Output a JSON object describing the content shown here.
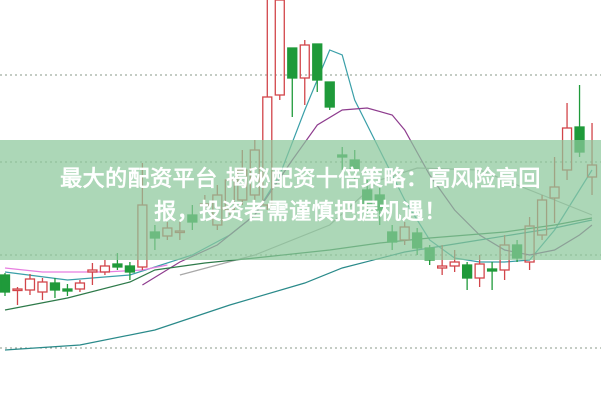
{
  "headline": {
    "line1": "最大的配资平台 揭秘配资十倍策略：高风险高回",
    "line2": "报，投资者需谨慎把握机遇！"
  },
  "chart_data": {
    "type": "candlestick",
    "title": "",
    "xlabel": "",
    "ylabel": "",
    "grid": "horizontal dotted",
    "colors": {
      "up": "#d2454a",
      "down": "#1f9a3a",
      "gridline": "#8a9a8a",
      "banner": "#8cc89b"
    },
    "candles": [
      {
        "o": 12.5,
        "h": 12.7,
        "l": 10.4,
        "c": 10.8
      },
      {
        "o": 11.0,
        "h": 11.3,
        "l": 9.5,
        "c": 11.1
      },
      {
        "o": 11.0,
        "h": 12.6,
        "l": 10.5,
        "c": 12.1
      },
      {
        "o": 10.8,
        "h": 12.2,
        "l": 10.0,
        "c": 11.8
      },
      {
        "o": 11.7,
        "h": 12.2,
        "l": 10.2,
        "c": 11.0
      },
      {
        "o": 11.1,
        "h": 11.6,
        "l": 10.4,
        "c": 10.9
      },
      {
        "o": 11.1,
        "h": 12.0,
        "l": 10.8,
        "c": 11.7
      },
      {
        "o": 12.8,
        "h": 13.7,
        "l": 11.5,
        "c": 13.0
      },
      {
        "o": 12.8,
        "h": 14.0,
        "l": 12.5,
        "c": 13.4
      },
      {
        "o": 13.6,
        "h": 14.7,
        "l": 13.0,
        "c": 13.3
      },
      {
        "o": 13.4,
        "h": 13.8,
        "l": 12.0,
        "c": 12.8
      },
      {
        "o": 13.3,
        "h": 23.7,
        "l": 13.0,
        "c": 19.5
      },
      {
        "o": 16.8,
        "h": 17.5,
        "l": 15.0,
        "c": 16.2
      },
      {
        "o": 16.4,
        "h": 17.8,
        "l": 16.0,
        "c": 17.2
      },
      {
        "o": 16.8,
        "h": 17.8,
        "l": 16.0,
        "c": 16.9
      },
      {
        "o": 18.5,
        "h": 19.5,
        "l": 17.0,
        "c": 17.8
      },
      {
        "o": 19.4,
        "h": 20.5,
        "l": 18.5,
        "c": 19.6
      },
      {
        "o": 17.5,
        "h": 21.5,
        "l": 17.0,
        "c": 20.5
      },
      {
        "o": 19.0,
        "h": 23.0,
        "l": 18.5,
        "c": 22.0
      },
      {
        "o": 20.0,
        "h": 25.0,
        "l": 19.5,
        "c": 23.0
      },
      {
        "o": 20.5,
        "h": 26.0,
        "l": 20.0,
        "c": 25.0
      },
      {
        "o": 19.5,
        "h": 40.0,
        "l": 19.0,
        "c": 30.3
      },
      {
        "o": 30.5,
        "h": 40.0,
        "l": 30.0,
        "c": 40.0
      },
      {
        "o": 35.2,
        "h": 35.2,
        "l": 28.3,
        "c": 32.2
      },
      {
        "o": 32.2,
        "h": 36.0,
        "l": 29.5,
        "c": 35.5
      },
      {
        "o": 35.6,
        "h": 35.6,
        "l": 30.8,
        "c": 32.0
      },
      {
        "o": 31.8,
        "h": 31.8,
        "l": 29.0,
        "c": 29.3
      },
      {
        "o": 24.5,
        "h": 25.3,
        "l": 23.0,
        "c": 24.3
      },
      {
        "o": 24.0,
        "h": 25.0,
        "l": 22.0,
        "c": 23.0
      },
      {
        "o": 21.0,
        "h": 22.0,
        "l": 18.5,
        "c": 19.5
      },
      {
        "o": 20.5,
        "h": 21.2,
        "l": 17.5,
        "c": 19.0
      },
      {
        "o": 16.8,
        "h": 17.5,
        "l": 15.0,
        "c": 15.8
      },
      {
        "o": 16.0,
        "h": 17.8,
        "l": 15.5,
        "c": 17.3
      },
      {
        "o": 16.7,
        "h": 17.2,
        "l": 14.5,
        "c": 15.2
      },
      {
        "o": 15.2,
        "h": 15.5,
        "l": 13.5,
        "c": 14.0
      },
      {
        "o": 13.2,
        "h": 15.5,
        "l": 12.5,
        "c": 13.4
      },
      {
        "o": 13.4,
        "h": 15.0,
        "l": 12.8,
        "c": 13.8
      },
      {
        "o": 13.5,
        "h": 13.8,
        "l": 11.0,
        "c": 12.2
      },
      {
        "o": 12.2,
        "h": 14.5,
        "l": 11.3,
        "c": 13.6
      },
      {
        "o": 13.1,
        "h": 13.8,
        "l": 11.0,
        "c": 12.9
      },
      {
        "o": 13.0,
        "h": 16.5,
        "l": 12.0,
        "c": 15.5
      },
      {
        "o": 15.5,
        "h": 16.0,
        "l": 13.8,
        "c": 14.2
      },
      {
        "o": 13.8,
        "h": 18.3,
        "l": 13.0,
        "c": 17.4
      },
      {
        "o": 16.5,
        "h": 20.5,
        "l": 16.0,
        "c": 20.0
      },
      {
        "o": 20.2,
        "h": 24.3,
        "l": 17.7,
        "c": 21.3
      },
      {
        "o": 23.0,
        "h": 29.7,
        "l": 22.0,
        "c": 27.2
      },
      {
        "o": 27.3,
        "h": 31.5,
        "l": 24.3,
        "c": 24.8
      },
      {
        "o": 22.3,
        "h": 27.7,
        "l": 20.5,
        "c": 23.5
      }
    ],
    "moving_averages": [
      {
        "color": "#3a9fa8",
        "points": [
          [
            0,
            12.8
          ],
          [
            5,
            12.0
          ],
          [
            10,
            12.5
          ],
          [
            15,
            14.5
          ],
          [
            18,
            16.5
          ],
          [
            20,
            18.5
          ],
          [
            22,
            22.5
          ],
          [
            24,
            29.0
          ],
          [
            26,
            35.0
          ],
          [
            27,
            34.5
          ],
          [
            28,
            30.0
          ],
          [
            30,
            25.0
          ],
          [
            32,
            20.0
          ],
          [
            34,
            16.0
          ],
          [
            36,
            14.2
          ],
          [
            38,
            13.8
          ],
          [
            40,
            13.8
          ],
          [
            42,
            14.0
          ],
          [
            44,
            17.0
          ],
          [
            46,
            21.0
          ],
          [
            47,
            23.0
          ]
        ]
      },
      {
        "color": "#8e3c8e",
        "points": [
          [
            11,
            11.5
          ],
          [
            14,
            13.8
          ],
          [
            17,
            15.5
          ],
          [
            20,
            18.5
          ],
          [
            23,
            24.0
          ],
          [
            25,
            27.5
          ],
          [
            27,
            29.0
          ],
          [
            29,
            29.2
          ],
          [
            31,
            28.5
          ],
          [
            32,
            27.0
          ],
          [
            34,
            22.5
          ],
          [
            36,
            19.0
          ],
          [
            38,
            16.5
          ],
          [
            40,
            15.0
          ],
          [
            42,
            14.5
          ],
          [
            44,
            15.0
          ],
          [
            46,
            16.5
          ],
          [
            47,
            17.5
          ]
        ]
      },
      {
        "color": "#e77ee0",
        "points": [
          [
            0,
            13.2
          ],
          [
            3,
            12.8
          ],
          [
            8,
            12.8
          ],
          [
            11,
            13.0
          ],
          [
            13,
            13.5
          ]
        ]
      },
      {
        "color": "#a8a8a8",
        "points": [
          [
            14,
            12.5
          ],
          [
            20,
            14.5
          ],
          [
            26,
            17.5
          ],
          [
            30,
            22.0
          ],
          [
            33,
            23.2
          ],
          [
            38,
            23.0
          ],
          [
            44,
            20.0
          ],
          [
            47,
            18.5
          ]
        ]
      },
      {
        "color": "#2e7a4a",
        "points": [
          [
            0,
            9.0
          ],
          [
            5,
            10.2
          ],
          [
            10,
            11.8
          ],
          [
            12,
            13.0
          ],
          [
            16,
            13.7
          ],
          [
            20,
            14.2
          ],
          [
            26,
            15.0
          ],
          [
            30,
            15.7
          ],
          [
            34,
            16.2
          ],
          [
            40,
            16.8
          ],
          [
            44,
            17.5
          ],
          [
            47,
            18.2
          ]
        ]
      },
      {
        "color": "#2a8a8a",
        "points": [
          [
            0,
            5.0
          ],
          [
            6,
            5.5
          ],
          [
            12,
            7.0
          ],
          [
            18,
            9.5
          ],
          [
            24,
            11.7
          ],
          [
            27,
            13.2
          ],
          [
            32,
            14.8
          ],
          [
            38,
            16.0
          ],
          [
            44,
            17.2
          ],
          [
            47,
            18.0
          ]
        ]
      }
    ]
  }
}
